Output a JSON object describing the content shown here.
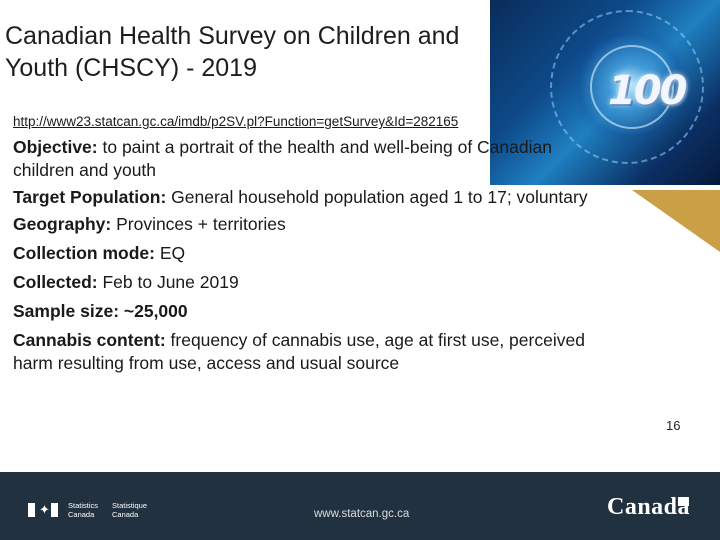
{
  "slide": {
    "title_line1": "Canadian Health Survey on Children and",
    "title_line2": "Youth (CHSCY) - 2019",
    "hero_number": "100",
    "url": "http://www23.statcan.gc.ca/imdb/p2SV.pl?Function=getSurvey&Id=282165",
    "page_number": "16"
  },
  "items": {
    "objective_label": "Objective:",
    "objective_text": " to paint a portrait of the health and well-being of Canadian children and youth",
    "target_label": "Target Population:",
    "target_text": "  General household population aged 1 to 17; voluntary",
    "geography_label": "Geography:",
    "geography_text": " Provinces + territories",
    "mode_label": "Collection mode:",
    "mode_text": "  EQ",
    "collected_label": "Collected:",
    "collected_text": "  Feb to June 2019",
    "sample_label": "Sample size: ~25,000",
    "cannabis_label": "Cannabis content:",
    "cannabis_text": " frequency of cannabis use, age at first use, perceived harm resulting from use, access and usual source"
  },
  "footer": {
    "stat_en_1": "Statistics",
    "stat_en_2": "Canada",
    "stat_fr_1": "Statistique",
    "stat_fr_2": "Canada",
    "url": "www.statcan.gc.ca",
    "wordmark": "Canada"
  },
  "colors": {
    "footer_bg": "#22313f",
    "accent_gold": "#c9a046",
    "hero_blue": "#0d4a8a"
  }
}
